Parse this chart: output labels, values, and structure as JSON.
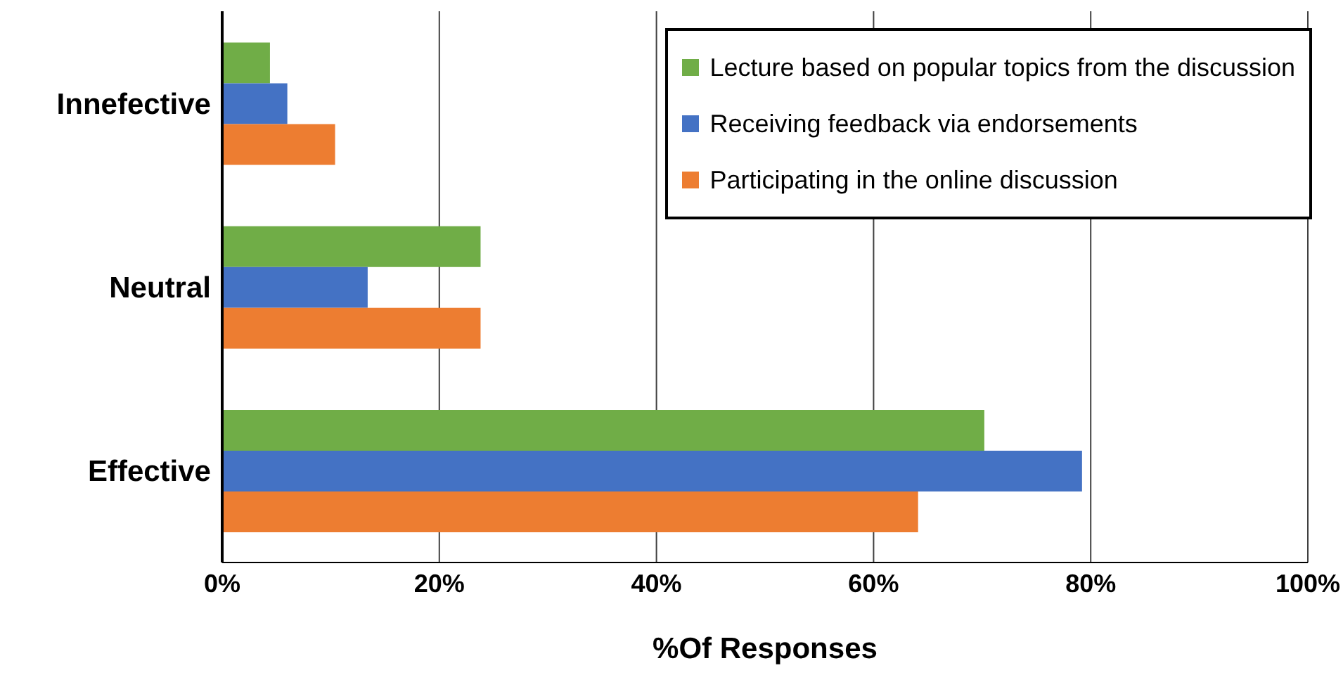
{
  "chart_data": {
    "type": "bar",
    "orientation": "horizontal",
    "xlabel": "%Of Responses",
    "categories": [
      "Innefective",
      "Neutral",
      "Effective"
    ],
    "series": [
      {
        "name": "Lecture based on popular topics from the discussion",
        "color": "#70ad47",
        "values": [
          4.4,
          23.8,
          70.2
        ]
      },
      {
        "name": "Receiving feedback via endorsements",
        "color": "#4472c4",
        "values": [
          6.0,
          13.4,
          79.2
        ]
      },
      {
        "name": "Participating in the online discussion",
        "color": "#ed7d31",
        "values": [
          10.4,
          23.8,
          64.1
        ]
      }
    ],
    "xlim": [
      0,
      100
    ],
    "xticks": [
      {
        "value": 0,
        "label": "0%"
      },
      {
        "value": 20,
        "label": "20%"
      },
      {
        "value": 40,
        "label": "40%"
      },
      {
        "value": 60,
        "label": "60%"
      },
      {
        "value": 80,
        "label": "80%"
      },
      {
        "value": 100,
        "label": "100%"
      }
    ],
    "grid": "x",
    "legend": "top right"
  }
}
